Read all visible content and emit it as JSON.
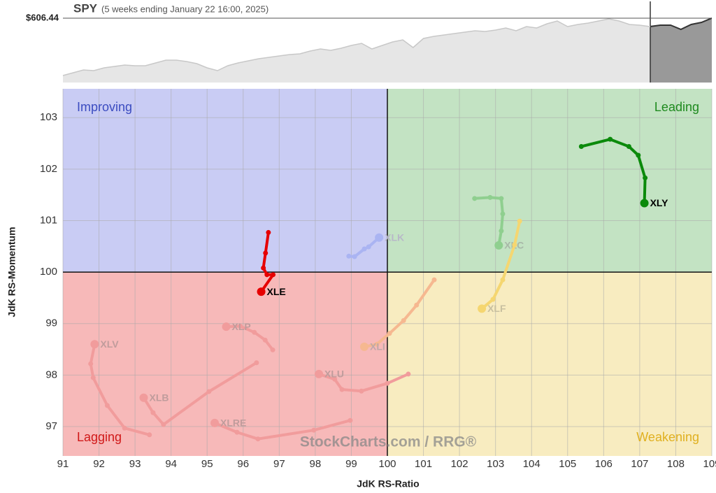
{
  "chart_data": {
    "type": "scatter",
    "benchmark": {
      "name": "SPY",
      "subtitle": "(5 weeks ending January 22 16:00, 2025)",
      "values": [
        584.65,
        585.72,
        586.78,
        586.51,
        587.57,
        588.1,
        588.64,
        588.37,
        588.37,
        589.43,
        590.49,
        590.49,
        589.96,
        589.17,
        587.57,
        586.51,
        588.37,
        589.43,
        590.23,
        591.03,
        591.56,
        592.09,
        592.62,
        592.88,
        593.95,
        594.74,
        594.21,
        595.01,
        596.07,
        596.87,
        594.74,
        596.07,
        597.4,
        598.19,
        595.27,
        598.73,
        599.52,
        600.05,
        600.58,
        601.11,
        601.64,
        601.38,
        601.91,
        602.71,
        601.64,
        603.24,
        602.71,
        604.3,
        605.36,
        603.24,
        604.04,
        604.57,
        605.36,
        606.16,
        605.36,
        604.04,
        603.77,
        603.24,
        603.77,
        603.77,
        602.18,
        604.04,
        604.83,
        606.44
      ],
      "ylim": [
        582,
        612
      ],
      "yticks": [
        {
          "value": 606.44,
          "label": "$606.44"
        }
      ],
      "color": "#c8c8c8",
      "fill": "#e6e6e6",
      "recent_fill": "#999999"
    },
    "xlabel": "JdK RS-Ratio",
    "ylabel": "JdK RS-Momentum",
    "watermark": "StockCharts.com / RRG®",
    "xlim": [
      91,
      109
    ],
    "ylim": [
      96.43,
      103.56
    ],
    "xticks": [
      91,
      92,
      93,
      94,
      95,
      96,
      97,
      98,
      99,
      100,
      101,
      102,
      103,
      104,
      105,
      106,
      107,
      108,
      109
    ],
    "yticks": [
      97,
      98,
      99,
      100,
      101,
      102,
      103
    ],
    "grid": true,
    "center": [
      100,
      100
    ],
    "quadrants": [
      {
        "name": "Improving",
        "color": "#c9ccf4",
        "label_color": "#3b4cc0",
        "corner": "top-left"
      },
      {
        "name": "Leading",
        "color": "#c3e3c3",
        "label_color": "#1e8a1e",
        "corner": "top-right"
      },
      {
        "name": "Lagging",
        "color": "#f7b9b9",
        "label_color": "#d01818",
        "corner": "bottom-left"
      },
      {
        "name": "Weakening",
        "color": "#f8ecc0",
        "label_color": "#e0b020",
        "corner": "bottom-right"
      }
    ],
    "series": [
      {
        "name": "XLK",
        "color": "#aab4f2",
        "label_color": "#b8b8c8",
        "x": [
          98.93,
          99.09,
          99.36,
          99.48,
          99.77
        ],
        "y": [
          100.31,
          100.3,
          100.45,
          100.49,
          100.67
        ]
      },
      {
        "name": "XLC",
        "color": "#8fcf8f",
        "label_color": "#a8b8a8",
        "x": [
          102.42,
          102.85,
          103.16,
          103.2,
          103.16,
          103.09
        ],
        "y": [
          101.43,
          101.45,
          101.43,
          101.13,
          100.8,
          100.52
        ]
      },
      {
        "name": "XLF",
        "color": "#f5d670",
        "label_color": "#c8c0a0",
        "x": [
          103.67,
          103.53,
          103.2,
          102.93,
          102.62
        ],
        "y": [
          100.99,
          100.53,
          99.85,
          99.47,
          99.29
        ]
      },
      {
        "name": "XLI",
        "color": "#f6b890",
        "label_color": "#c0a8a8",
        "x": [
          101.3,
          100.81,
          100.45,
          100.06,
          99.71,
          99.36
        ],
        "y": [
          99.85,
          99.36,
          99.06,
          98.81,
          98.6,
          98.55
        ]
      },
      {
        "name": "XLU",
        "color": "#f19c9c",
        "label_color": "#c09c9c",
        "x": [
          100.58,
          100.0,
          99.28,
          98.74,
          98.54,
          98.1
        ],
        "y": [
          98.02,
          97.84,
          97.69,
          97.72,
          97.92,
          98.02
        ]
      },
      {
        "name": "XLP",
        "color": "#f19c9c",
        "label_color": "#c09c9c",
        "x": [
          96.82,
          96.61,
          96.31,
          95.92,
          95.53
        ],
        "y": [
          98.49,
          98.68,
          98.83,
          98.95,
          98.94
        ]
      },
      {
        "name": "XLV",
        "color": "#f19c9c",
        "label_color": "#c09c9c",
        "x": [
          93.4,
          92.71,
          92.23,
          91.84,
          91.77,
          91.88
        ],
        "y": [
          96.84,
          96.97,
          97.41,
          97.95,
          98.22,
          98.6
        ]
      },
      {
        "name": "XLB",
        "color": "#f19c9c",
        "label_color": "#c09c9c",
        "x": [
          96.37,
          95.05,
          93.79,
          93.5,
          93.24
        ],
        "y": [
          98.24,
          97.68,
          97.04,
          97.27,
          97.56
        ]
      },
      {
        "name": "XLRE",
        "color": "#f19c9c",
        "label_color": "#c09c9c",
        "x": [
          98.97,
          97.96,
          96.41,
          95.83,
          95.21
        ],
        "y": [
          97.12,
          96.93,
          96.76,
          96.89,
          97.07
        ]
      },
      {
        "name": "XLE",
        "color": "#e60000",
        "label_color": "#000000",
        "x": [
          96.7,
          96.62,
          96.56,
          96.66,
          96.83,
          96.5
        ],
        "y": [
          100.77,
          100.37,
          100.08,
          99.95,
          99.95,
          99.62
        ]
      },
      {
        "name": "XLY",
        "color": "#0b8a0b",
        "label_color": "#000000",
        "x": [
          105.38,
          106.18,
          106.7,
          106.96,
          107.15,
          107.13
        ],
        "y": [
          102.44,
          102.58,
          102.44,
          102.27,
          101.83,
          101.34
        ]
      }
    ]
  }
}
